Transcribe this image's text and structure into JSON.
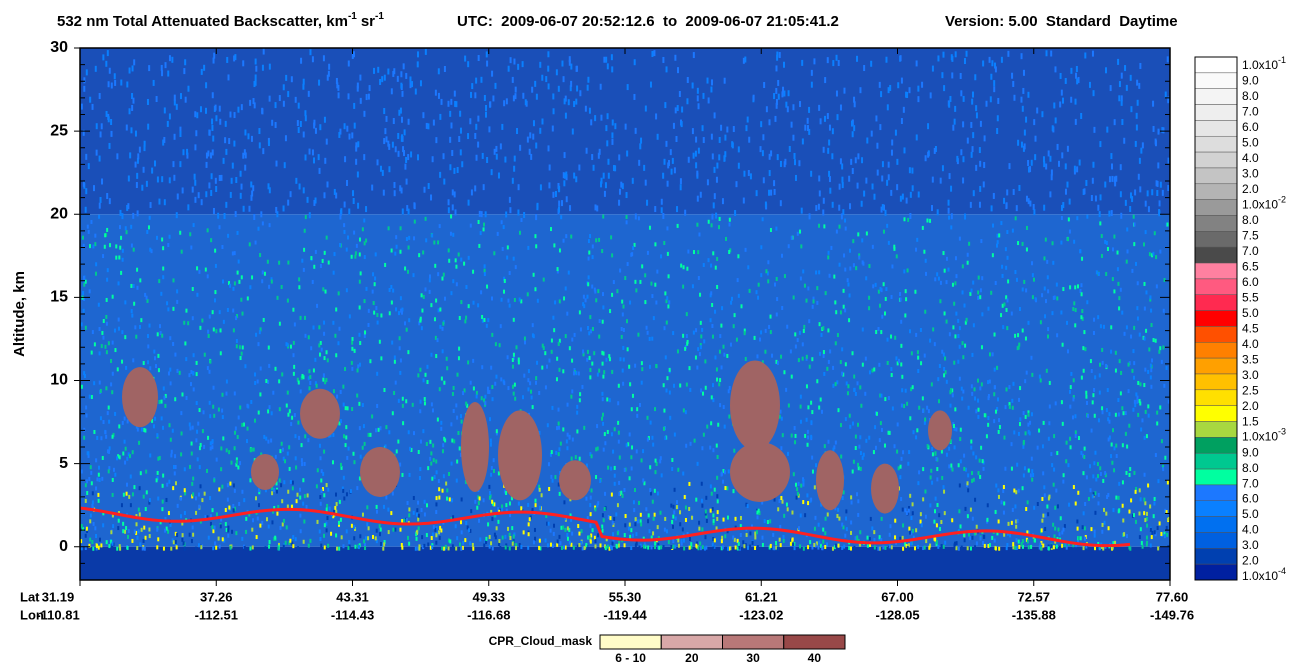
{
  "chart_data": {
    "type": "curtain",
    "title": {
      "text1": "532 nm Total Attenuated Backscatter, km",
      "sup1": "-1",
      "text2": "sr",
      "sup2": "-1"
    },
    "time_range": "UTC:  2009-06-07 20:52:12.6  to  2009-06-07 21:05:41.2",
    "version": "Version: 5.00  Standard  Daytime",
    "ylabel": "Altitude, km",
    "ylim": [
      -2,
      30
    ],
    "yticks": [
      0,
      5,
      10,
      15,
      20,
      25,
      30
    ],
    "x_row_labels": [
      "Lat",
      "Lon"
    ],
    "lat": [
      "31.19",
      "37.26",
      "43.31",
      "49.33",
      "55.30",
      "61.21",
      "67.00",
      "72.57",
      "77.60"
    ],
    "lon": [
      "-110.81",
      "-112.51",
      "-114.43",
      "-116.68",
      "-119.44",
      "-123.02",
      "-128.05",
      "-135.88",
      "-149.76"
    ],
    "colorbar": {
      "labels": [
        {
          "text": "1.0x10",
          "sup": "-1"
        },
        "9.0",
        "8.0",
        "7.0",
        "6.0",
        "5.0",
        "4.0",
        "3.0",
        "2.0",
        {
          "text": "1.0x10",
          "sup": "-2"
        },
        "8.0",
        "7.5",
        "7.0",
        "6.5",
        "6.0",
        "5.5",
        "5.0",
        "4.5",
        "4.0",
        "3.5",
        "3.0",
        "2.5",
        "2.0",
        "1.5",
        {
          "text": "1.0x10",
          "sup": "-3"
        },
        "9.0",
        "8.0",
        "7.0",
        "6.0",
        "5.0",
        "4.0",
        "3.0",
        "2.0",
        {
          "text": "1.0x10",
          "sup": "-4"
        }
      ],
      "colors": [
        "#ffffff",
        "#fafafa",
        "#f4f4f4",
        "#eeeeee",
        "#e6e6e6",
        "#dddddd",
        "#d2d2d2",
        "#c4c4c4",
        "#b4b4b4",
        "#9a9a9a",
        "#828282",
        "#6a6a6a",
        "#4a4a4a",
        "#ff80a0",
        "#ff5a80",
        "#ff2a50",
        "#ff0000",
        "#ff5000",
        "#ff8000",
        "#ffa000",
        "#ffc000",
        "#ffe000",
        "#ffff00",
        "#a8d840",
        "#00a060",
        "#00c890",
        "#00ffa0",
        "#1c78ff",
        "#0a80ff",
        "#0070f0",
        "#0060e0",
        "#0040b0",
        "#0020a0"
      ]
    },
    "cpr_legend": {
      "title": "CPR_Cloud_mask",
      "labels": [
        "6 - 10",
        "20",
        "30",
        "40"
      ],
      "colors": [
        "#fffcc8",
        "#d8a8a8",
        "#b87878",
        "#984848"
      ]
    }
  }
}
